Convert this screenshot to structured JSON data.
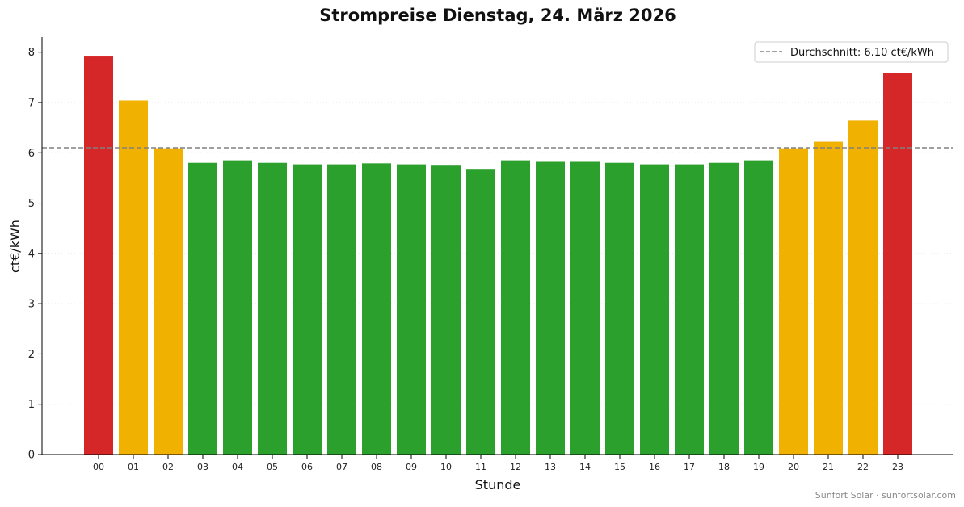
{
  "chart_data": {
    "type": "bar",
    "title": "Strompreise Dienstag, 24. März 2026",
    "xlabel": "Stunde",
    "ylabel": "ct€/kWh",
    "ylim": [
      0,
      8.3
    ],
    "yticks": [
      "0",
      "1",
      "2",
      "3",
      "4",
      "5",
      "6",
      "7",
      "8"
    ],
    "grid": "y-dotted",
    "categories": [
      "00",
      "01",
      "02",
      "03",
      "04",
      "05",
      "06",
      "07",
      "08",
      "09",
      "10",
      "11",
      "12",
      "13",
      "14",
      "15",
      "16",
      "17",
      "18",
      "19",
      "20",
      "21",
      "22",
      "23"
    ],
    "values": [
      7.93,
      7.04,
      6.09,
      5.8,
      5.85,
      5.8,
      5.77,
      5.77,
      5.79,
      5.77,
      5.76,
      5.68,
      5.85,
      5.82,
      5.82,
      5.8,
      5.77,
      5.77,
      5.8,
      5.85,
      6.09,
      6.22,
      6.64,
      7.59
    ],
    "bar_colors": [
      "#d62728",
      "#f0b100",
      "#f0b100",
      "#2ca02c",
      "#2ca02c",
      "#2ca02c",
      "#2ca02c",
      "#2ca02c",
      "#2ca02c",
      "#2ca02c",
      "#2ca02c",
      "#2ca02c",
      "#2ca02c",
      "#2ca02c",
      "#2ca02c",
      "#2ca02c",
      "#2ca02c",
      "#2ca02c",
      "#2ca02c",
      "#2ca02c",
      "#f0b100",
      "#f0b100",
      "#f0b100",
      "#d62728"
    ],
    "average": {
      "value": 6.1,
      "label": "Durchschnitt: 6.10 ct€/kWh",
      "color": "#808080",
      "style": "dashed"
    },
    "legend": "top-right"
  },
  "footer": {
    "credit": "Sunfort Solar · sunfortsolar.com"
  }
}
